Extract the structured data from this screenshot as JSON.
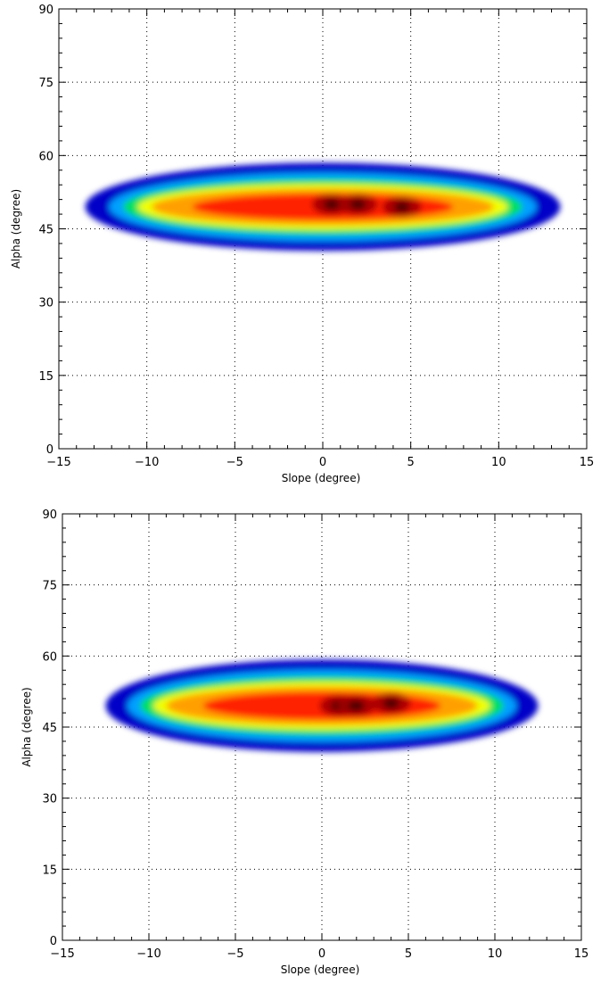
{
  "chart_data": [
    {
      "type": "heatmap",
      "title": "",
      "xlabel": "Slope (degree)",
      "ylabel": "Alpha (degree)",
      "xlim": [
        -15,
        15
      ],
      "ylim": [
        0,
        90
      ],
      "x_ticks": [
        "-15",
        "-10",
        "-5",
        "0",
        "5",
        "10",
        "15"
      ],
      "y_ticks": [
        "0",
        "15",
        "30",
        "45",
        "60",
        "75",
        "90"
      ],
      "grid": true,
      "colormap": [
        "#0000c8",
        "#00a0ff",
        "#00e060",
        "#f0ff00",
        "#ffa000",
        "#ff2000",
        "#a00000",
        "#3a0000"
      ],
      "density_region": {
        "x_range": [
          -13.5,
          13.5
        ],
        "y_range": [
          39.5,
          57.5
        ],
        "center_y": 49.5,
        "peaks": [
          {
            "x": 0.5,
            "y": 50
          },
          {
            "x": 2.0,
            "y": 50
          },
          {
            "x": 4.5,
            "y": 49.5
          }
        ]
      }
    },
    {
      "type": "heatmap",
      "title": "",
      "xlabel": "Slope (degree)",
      "ylabel": "Alpha (degree)",
      "xlim": [
        -15,
        15
      ],
      "ylim": [
        0,
        90
      ],
      "x_ticks": [
        "-15",
        "-10",
        "-5",
        "0",
        "5",
        "10",
        "15"
      ],
      "y_ticks": [
        "0",
        "15",
        "30",
        "45",
        "60",
        "75",
        "90"
      ],
      "grid": true,
      "colormap": [
        "#0000c8",
        "#00a0ff",
        "#00e060",
        "#f0ff00",
        "#ffa000",
        "#ff2000",
        "#a00000",
        "#3a0000"
      ],
      "density_region": {
        "x_range": [
          -12.5,
          12.5
        ],
        "y_range": [
          39.0,
          58.5
        ],
        "center_y": 49.5,
        "peaks": [
          {
            "x": 1.0,
            "y": 49.5
          },
          {
            "x": 2.0,
            "y": 49.5
          },
          {
            "x": 4.0,
            "y": 50
          }
        ]
      }
    }
  ]
}
